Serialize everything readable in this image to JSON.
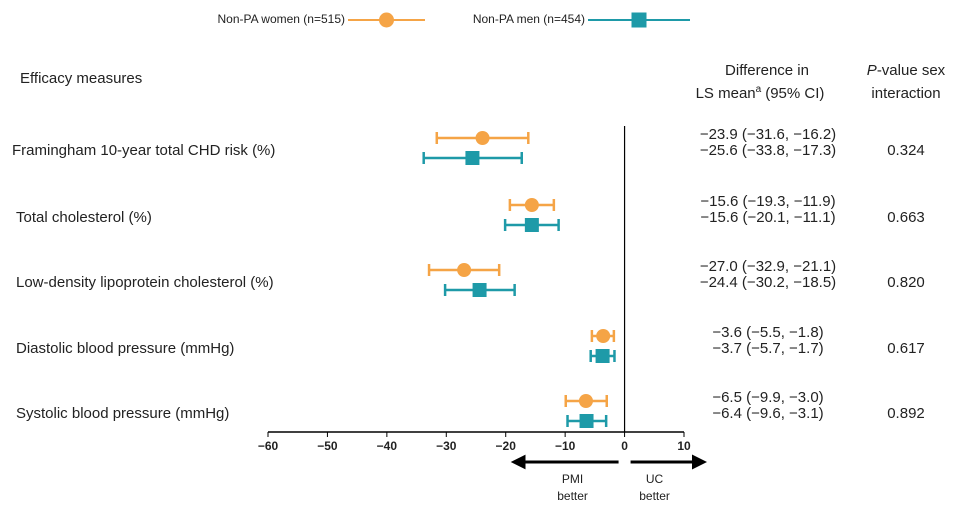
{
  "chart_data": {
    "type": "forest",
    "row_header": "Efficacy measures",
    "diff_header": [
      "Difference in",
      "LS  mean",
      "a",
      "(95% CI)"
    ],
    "p_header": [
      "P",
      "-value sex",
      "interaction"
    ],
    "categories": [
      "Framingham 10-year total CHD risk (%)",
      "Total cholesterol (%)",
      "Low-density lipoprotein cholesterol (%)",
      "Diastolic blood pressure (mmHg)",
      "Systolic blood pressure (mmHg)"
    ],
    "series": [
      {
        "name": "Non-PA women (n=515)",
        "color": "#f5a446",
        "marker": "circle",
        "values": [
          -23.9,
          -15.6,
          -27.0,
          -3.6,
          -6.5
        ],
        "lower": [
          -31.6,
          -19.3,
          -32.9,
          -5.5,
          -9.9
        ],
        "upper": [
          -16.2,
          -11.9,
          -21.1,
          -1.8,
          -3.0
        ],
        "value_labels": [
          "−23.9 (−31.6, −16.2)",
          "−15.6 (−19.3, −11.9)",
          "−27.0 (−32.9, −21.1)",
          "−3.6 (−5.5, −1.8)",
          "−6.5 (−9.9, −3.0)"
        ]
      },
      {
        "name": "Non-PA men (n=454)",
        "color": "#1e9aa8",
        "marker": "square",
        "values": [
          -25.6,
          -15.6,
          -24.4,
          -3.7,
          -6.4
        ],
        "lower": [
          -33.8,
          -20.1,
          -30.2,
          -5.7,
          -9.6
        ],
        "upper": [
          -17.3,
          -11.1,
          -18.5,
          -1.7,
          -3.1
        ],
        "value_labels": [
          "−25.6 (−33.8, −17.3)",
          "−15.6 (−20.1, −11.1)",
          "−24.4 (−30.2, −18.5)",
          "−3.7 (−5.7, −1.7)",
          "−6.4 (−9.6, −3.1)"
        ]
      }
    ],
    "p_values": [
      "0.324",
      "0.663",
      "0.820",
      "0.617",
      "0.892"
    ],
    "xlim": [
      -60,
      10
    ],
    "xticks": [
      {
        "value": -60,
        "label": "−60"
      },
      {
        "value": -50,
        "label": "−50"
      },
      {
        "value": -40,
        "label": "−40"
      },
      {
        "value": -30,
        "label": "−30"
      },
      {
        "value": -20,
        "label": "−20"
      },
      {
        "value": -10,
        "label": "−10"
      },
      0,
      10
    ],
    "left_arrow_label": [
      "PMI",
      "better"
    ],
    "right_arrow_label": [
      "UC",
      "better"
    ]
  }
}
